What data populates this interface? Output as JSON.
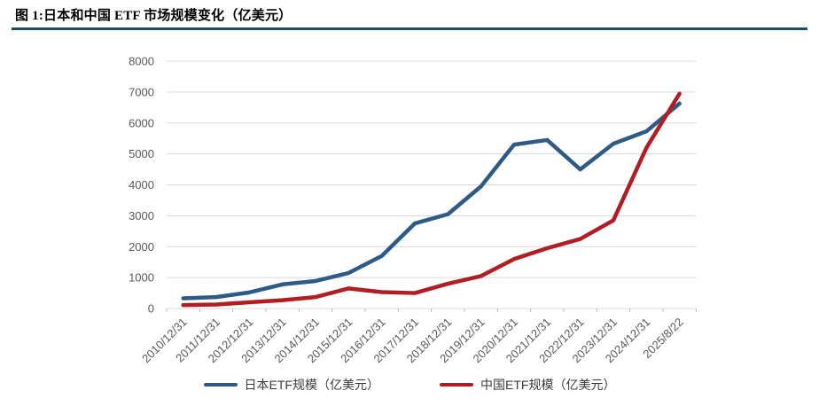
{
  "title": "图 1:日本和中国 ETF 市场规模变化（亿美元）",
  "legend": {
    "japan": "日本ETF规模（亿美元）",
    "china": "中国ETF规模（亿美元）"
  },
  "colors": {
    "japan_line": "#2e5a86",
    "china_line": "#b01e23",
    "title_rule": "#1c4e61",
    "gridline": "#d9d9d9",
    "tick": "#bfbfbf",
    "axis_text": "#595959"
  },
  "chart_data": {
    "type": "line",
    "title": "图 1:日本和中国 ETF 市场规模变化（亿美元）",
    "xlabel": "",
    "ylabel": "",
    "ylim": [
      0,
      8000
    ],
    "ytick_step": 1000,
    "grid": true,
    "legend_position": "bottom",
    "categories": [
      "2010/12/31",
      "2011/12/31",
      "2012/12/31",
      "2013/12/31",
      "2014/12/31",
      "2015/12/31",
      "2016/12/31",
      "2017/12/31",
      "2018/12/31",
      "2019/12/31",
      "2020/12/31",
      "2021/12/31",
      "2022/12/31",
      "2023/12/31",
      "2024/12/31",
      "2025/8/22"
    ],
    "series": [
      {
        "name": "日本ETF规模（亿美元）",
        "color": "#2e5a86",
        "values": [
          330,
          370,
          520,
          780,
          890,
          1150,
          1700,
          2750,
          3050,
          3950,
          5300,
          5450,
          4500,
          5330,
          5730,
          6630
        ]
      },
      {
        "name": "中国ETF规模（亿美元）",
        "color": "#b01e23",
        "values": [
          110,
          130,
          200,
          270,
          370,
          650,
          530,
          500,
          800,
          1050,
          1600,
          1950,
          2250,
          2850,
          5200,
          6950
        ]
      }
    ]
  }
}
